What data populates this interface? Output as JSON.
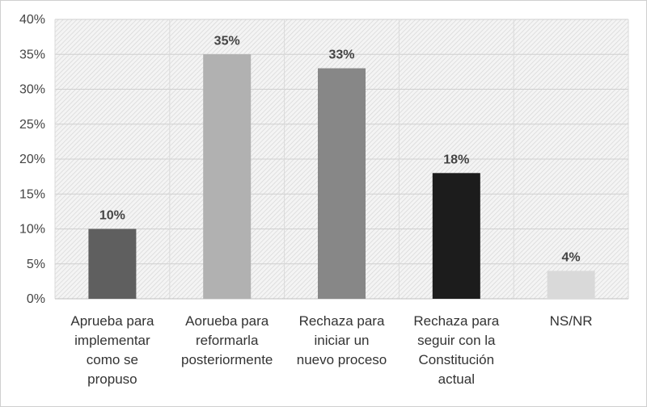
{
  "chart_data": {
    "type": "bar",
    "title": "",
    "xlabel": "",
    "ylabel": "",
    "ylim": [
      0,
      40
    ],
    "yticks": [
      "0%",
      "5%",
      "10%",
      "15%",
      "20%",
      "25%",
      "30%",
      "35%",
      "40%"
    ],
    "grid": true,
    "legend": "none",
    "categories": [
      [
        "Aprueba para",
        "implementar",
        "como se",
        "propuso"
      ],
      [
        "Aorueba para",
        "reformarla",
        "posteriormente"
      ],
      [
        "Rechaza para",
        "iniciar un",
        "nuevo proceso"
      ],
      [
        "Rechaza para",
        "seguir con la",
        "Constitución",
        "actual"
      ],
      [
        "NS/NR"
      ]
    ],
    "values": [
      10,
      35,
      33,
      18,
      4
    ],
    "data_labels": [
      "10%",
      "35%",
      "33%",
      "18%",
      "4%"
    ],
    "colors": [
      "#5f5f5f",
      "#b1b1b1",
      "#878787",
      "#1c1c1c",
      "#d9d9d9"
    ]
  }
}
